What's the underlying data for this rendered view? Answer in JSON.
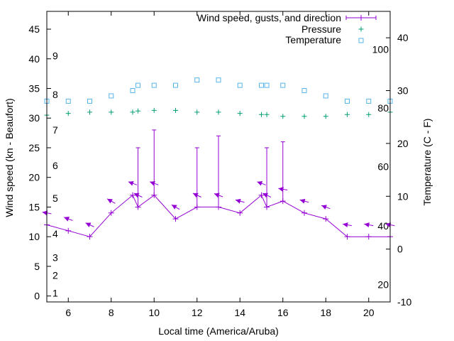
{
  "chart_data": {
    "type": "line",
    "title": "",
    "xlabel": "Local time (America/Aruba)",
    "ylabel": "Wind speed (kn - Beaufort)",
    "y2label": "Temperature (C - F)",
    "xlim": [
      5,
      21
    ],
    "ylim": [
      -1,
      48
    ],
    "y2lim": [
      -10,
      45
    ],
    "x_ticks": [
      6,
      8,
      10,
      12,
      14,
      16,
      18,
      20
    ],
    "y_ticks": [
      0,
      5,
      10,
      15,
      20,
      25,
      30,
      35,
      40,
      45
    ],
    "y2_ticks": [
      -10,
      0,
      10,
      20,
      30,
      40
    ],
    "beaufort_labels": [
      {
        "label": "1",
        "kn": 0.5
      },
      {
        "label": "2",
        "kn": 3.5
      },
      {
        "label": "3",
        "kn": 6.5
      },
      {
        "label": "4",
        "kn": 10.5
      },
      {
        "label": "5",
        "kn": 16.5
      },
      {
        "label": "6",
        "kn": 22
      },
      {
        "label": "7",
        "kn": 28
      },
      {
        "label": "8",
        "kn": 34
      },
      {
        "label": "9",
        "kn": 40.5
      }
    ],
    "fahrenheit_labels": [
      {
        "label": "20",
        "c": -6.7
      },
      {
        "label": "40",
        "c": 4.4
      },
      {
        "label": "60",
        "c": 15.6
      },
      {
        "label": "80",
        "c": 26.7
      },
      {
        "label": "100",
        "c": 37.8
      }
    ],
    "legend": {
      "position": "top-right",
      "wind": "Wind speed, gusts, and direction",
      "pressure": "Pressure",
      "temperature": "Temperature"
    },
    "colors": {
      "wind": "#9400d3",
      "pressure": "#009e73",
      "temperature": "#56b4e9"
    },
    "wind": [
      {
        "x": 5,
        "speed": 12,
        "gust": 12,
        "dir_deg": 100
      },
      {
        "x": 6,
        "speed": 11,
        "gust": 11,
        "dir_deg": 110
      },
      {
        "x": 7,
        "speed": 10,
        "gust": 10,
        "dir_deg": 115
      },
      {
        "x": 8,
        "speed": 14,
        "gust": 14,
        "dir_deg": 120
      },
      {
        "x": 9,
        "speed": 17,
        "gust": 17,
        "dir_deg": 110
      },
      {
        "x": 9.25,
        "speed": 15,
        "gust": 25,
        "dir_deg": 115
      },
      {
        "x": 10,
        "speed": 17,
        "gust": 28,
        "dir_deg": 110
      },
      {
        "x": 11,
        "speed": 13,
        "gust": 13,
        "dir_deg": 120
      },
      {
        "x": 12,
        "speed": 15,
        "gust": 25,
        "dir_deg": 115
      },
      {
        "x": 13,
        "speed": 15,
        "gust": 27,
        "dir_deg": 110
      },
      {
        "x": 14,
        "speed": 14,
        "gust": 14,
        "dir_deg": 105
      },
      {
        "x": 15,
        "speed": 17,
        "gust": 17,
        "dir_deg": 110
      },
      {
        "x": 15.25,
        "speed": 15,
        "gust": 25,
        "dir_deg": 115
      },
      {
        "x": 16,
        "speed": 16,
        "gust": 26,
        "dir_deg": 100
      },
      {
        "x": 17,
        "speed": 14,
        "gust": 14,
        "dir_deg": 105
      },
      {
        "x": 18,
        "speed": 13,
        "gust": 13,
        "dir_deg": 110
      },
      {
        "x": 19,
        "speed": 10,
        "gust": 10,
        "dir_deg": 100
      },
      {
        "x": 20,
        "speed": 10,
        "gust": 10,
        "dir_deg": 100
      },
      {
        "x": 21,
        "speed": 10,
        "gust": 10,
        "dir_deg": 100
      }
    ],
    "pressure": [
      {
        "x": 5,
        "y": 30.5
      },
      {
        "x": 6,
        "y": 30.8
      },
      {
        "x": 7,
        "y": 31.0
      },
      {
        "x": 8,
        "y": 31.0
      },
      {
        "x": 9,
        "y": 31.0
      },
      {
        "x": 9.25,
        "y": 31.2
      },
      {
        "x": 10,
        "y": 31.3
      },
      {
        "x": 11,
        "y": 31.3
      },
      {
        "x": 12,
        "y": 31.0
      },
      {
        "x": 13,
        "y": 31.0
      },
      {
        "x": 14,
        "y": 30.8
      },
      {
        "x": 15,
        "y": 30.6
      },
      {
        "x": 15.25,
        "y": 30.6
      },
      {
        "x": 16,
        "y": 30.3
      },
      {
        "x": 17,
        "y": 30.3
      },
      {
        "x": 18,
        "y": 30.3
      },
      {
        "x": 19,
        "y": 30.6
      },
      {
        "x": 20,
        "y": 30.6
      },
      {
        "x": 21,
        "y": 31.0
      }
    ],
    "temperature": [
      {
        "x": 5,
        "c": 28
      },
      {
        "x": 6,
        "c": 28
      },
      {
        "x": 7,
        "c": 28
      },
      {
        "x": 8,
        "c": 29
      },
      {
        "x": 9,
        "c": 30
      },
      {
        "x": 9.25,
        "c": 31
      },
      {
        "x": 10,
        "c": 31
      },
      {
        "x": 11,
        "c": 31
      },
      {
        "x": 12,
        "c": 32
      },
      {
        "x": 13,
        "c": 32
      },
      {
        "x": 14,
        "c": 31
      },
      {
        "x": 15,
        "c": 31
      },
      {
        "x": 15.25,
        "c": 31
      },
      {
        "x": 16,
        "c": 31
      },
      {
        "x": 17,
        "c": 30
      },
      {
        "x": 18,
        "c": 29
      },
      {
        "x": 19,
        "c": 28
      },
      {
        "x": 20,
        "c": 28
      },
      {
        "x": 21,
        "c": 28
      }
    ]
  }
}
